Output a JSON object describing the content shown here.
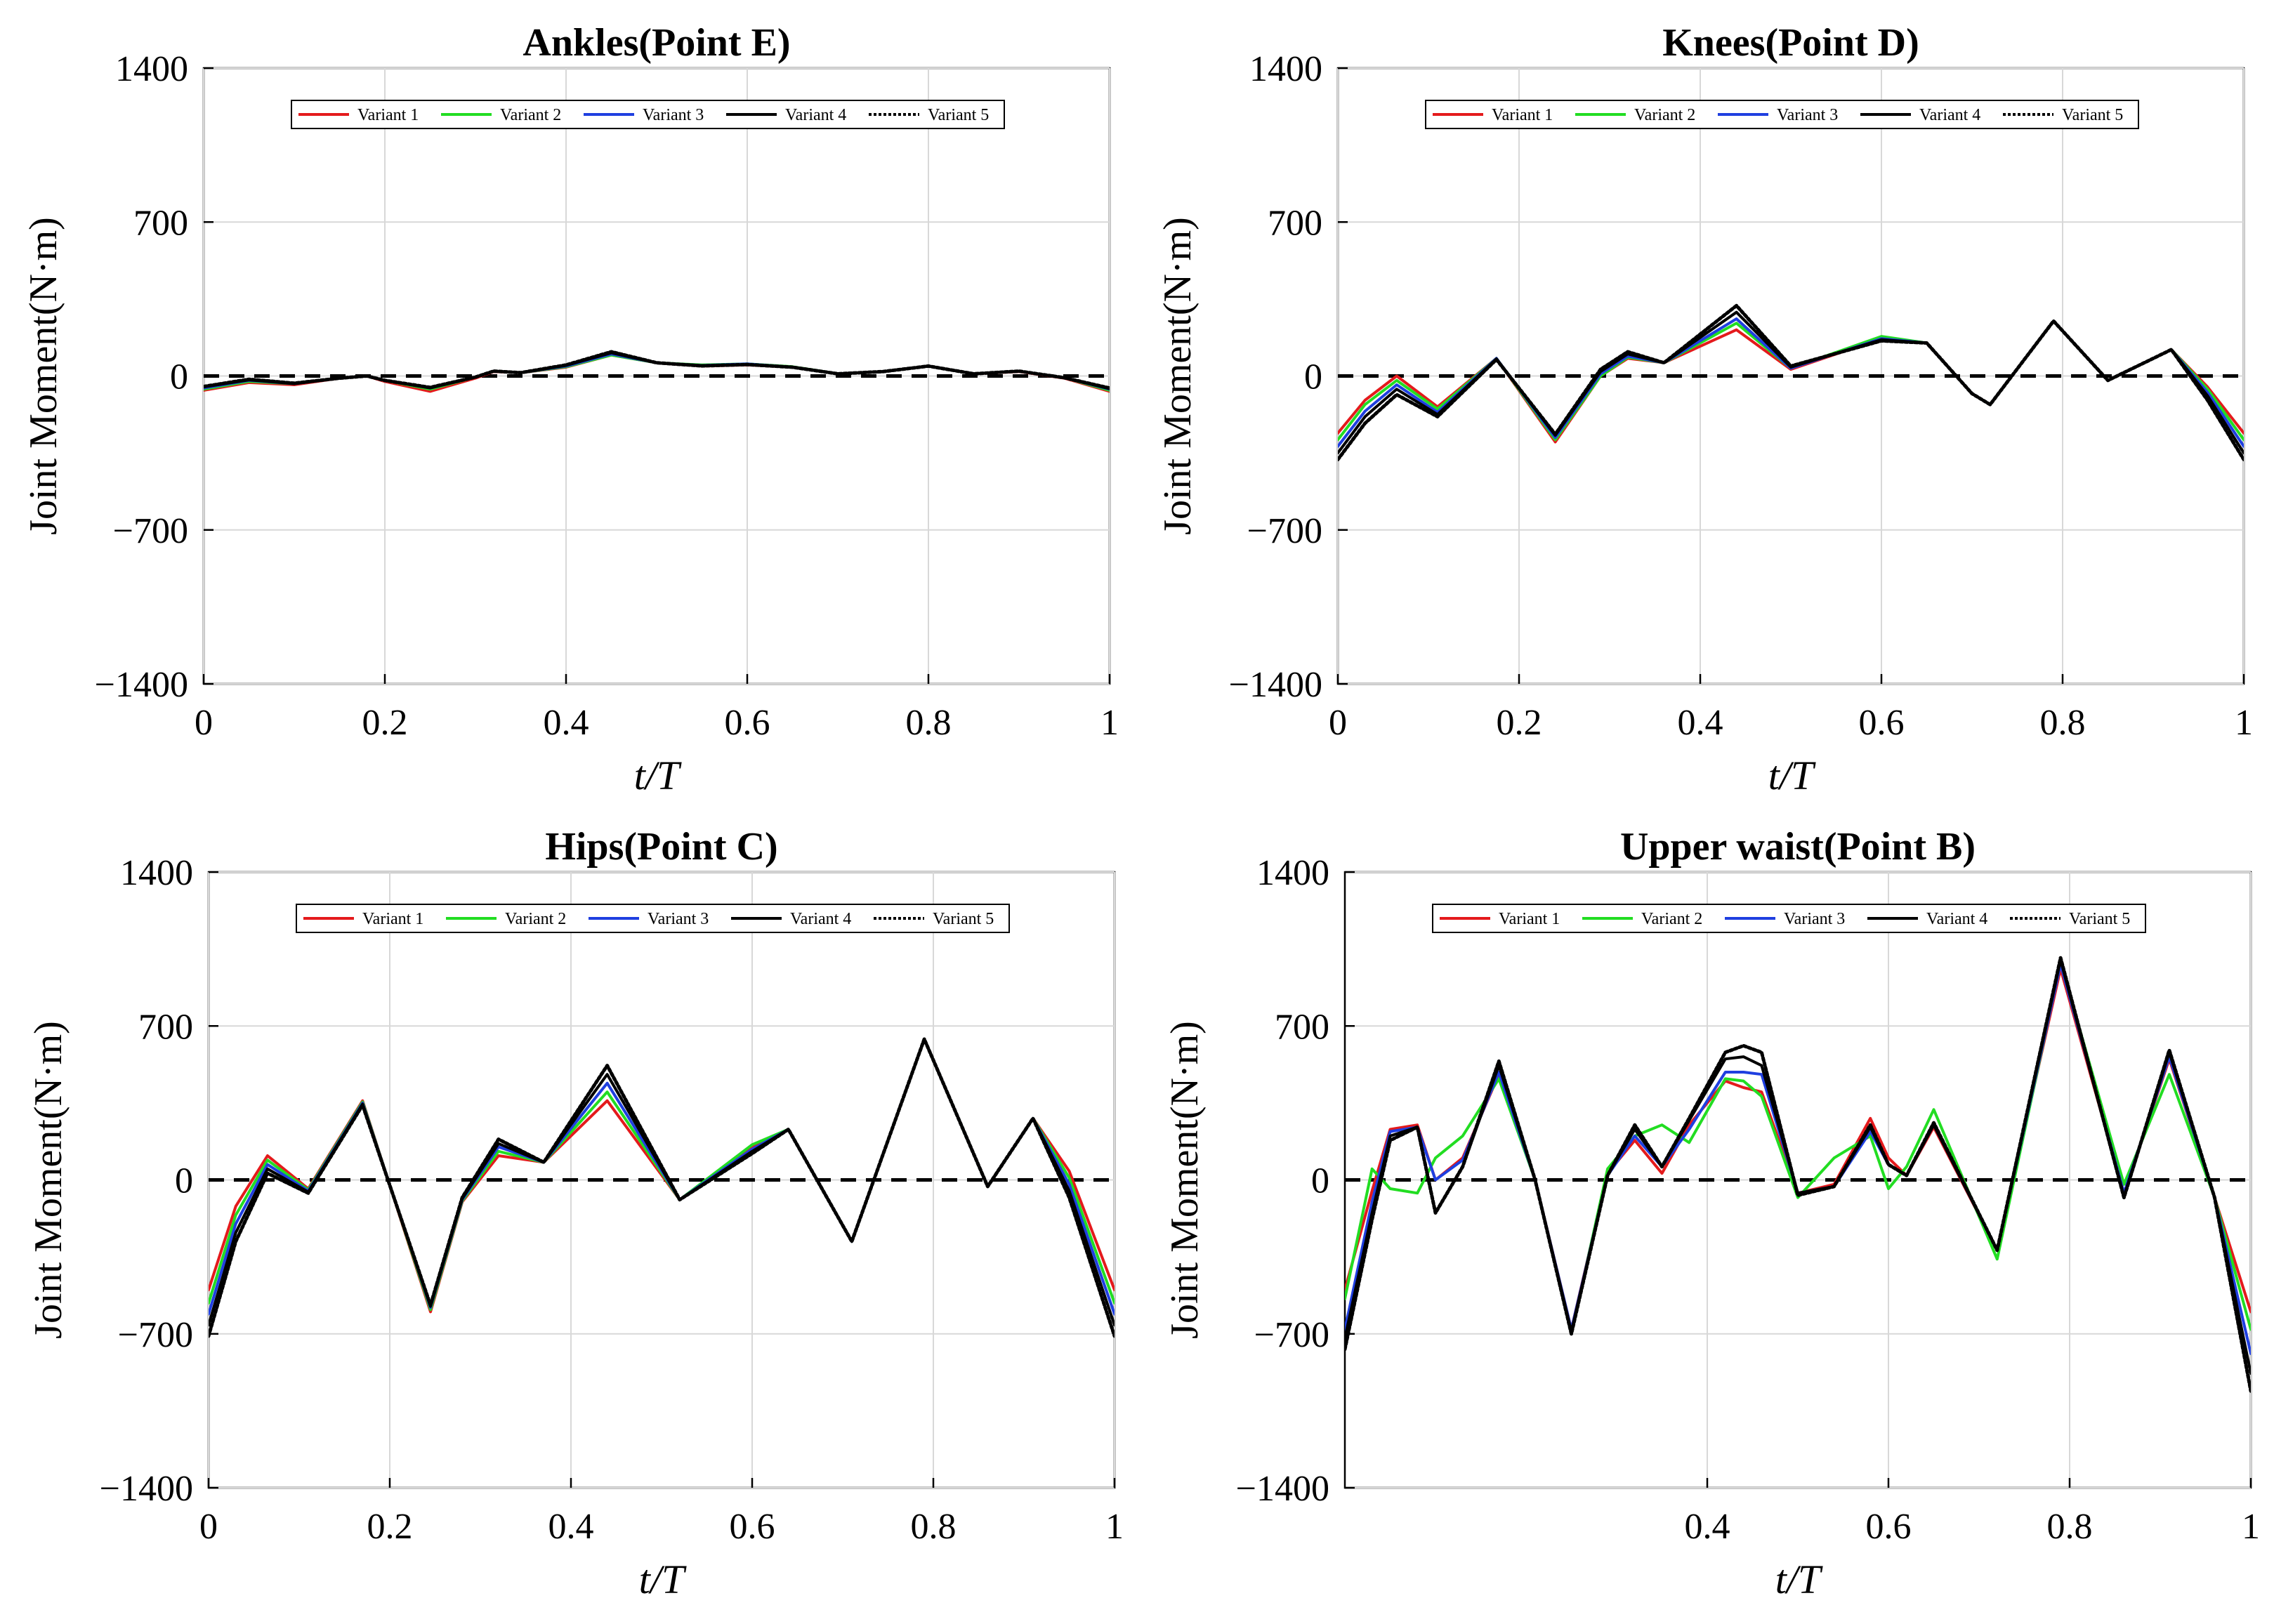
{
  "chart_data": [
    {
      "type": "line",
      "title": "Ankles(Point E)",
      "xlabel": "t/T",
      "ylabel": "Joint Moment(N·m)",
      "xlim": [
        0,
        1
      ],
      "ylim": [
        -1400,
        1400
      ],
      "xticks": [
        0,
        0.2,
        0.4,
        0.6,
        0.8,
        1
      ],
      "xtick_labels": [
        "0",
        "0.2",
        "0.4",
        "0.6",
        "0.8",
        "1"
      ],
      "yticks": [
        1400,
        700,
        0,
        -700,
        -1400
      ],
      "ytick_labels": [
        "1400",
        "700",
        "0",
        "−700",
        "−1400"
      ],
      "x": [
        0,
        0.05,
        0.1,
        0.15,
        0.18,
        0.2,
        0.25,
        0.3,
        0.32,
        0.35,
        0.4,
        0.45,
        0.5,
        0.55,
        0.6,
        0.65,
        0.7,
        0.75,
        0.8,
        0.85,
        0.9,
        0.95,
        1.0
      ],
      "series": [
        {
          "name": "Variant 1",
          "color": "#e41a1c",
          "dash": "",
          "values": [
            -65,
            -30,
            -40,
            -10,
            0,
            -25,
            -70,
            -10,
            20,
            15,
            40,
            95,
            60,
            45,
            50,
            40,
            10,
            20,
            45,
            10,
            20,
            -10,
            -70
          ]
        },
        {
          "name": "Variant 2",
          "color": "#22dd22",
          "dash": "",
          "values": [
            -60,
            -25,
            -35,
            -10,
            0,
            -20,
            -60,
            -5,
            22,
            15,
            42,
            95,
            60,
            50,
            55,
            42,
            10,
            20,
            45,
            10,
            22,
            -8,
            -65
          ]
        },
        {
          "name": "Variant 3",
          "color": "#1f3fe0",
          "dash": "",
          "values": [
            -55,
            -20,
            -35,
            -10,
            0,
            -20,
            -55,
            -5,
            22,
            15,
            45,
            100,
            60,
            48,
            55,
            40,
            10,
            20,
            45,
            10,
            22,
            -8,
            -60
          ]
        },
        {
          "name": "Variant 4",
          "color": "#000000",
          "dash": "",
          "values": [
            -50,
            -18,
            -35,
            -10,
            0,
            -20,
            -55,
            -5,
            22,
            15,
            48,
            105,
            60,
            47,
            52,
            40,
            10,
            20,
            45,
            10,
            22,
            -8,
            -58
          ]
        },
        {
          "name": "Variant 5",
          "color": "#000000",
          "dash": "4 3",
          "values": [
            -48,
            -15,
            -33,
            -10,
            0,
            -20,
            -52,
            -5,
            22,
            15,
            50,
            110,
            60,
            46,
            52,
            40,
            10,
            20,
            45,
            10,
            22,
            -8,
            -55
          ]
        }
      ]
    },
    {
      "type": "line",
      "title": "Knees(Point D)",
      "xlabel": "t/T",
      "ylabel": "Joint Moment(N·m)",
      "xlim": [
        0,
        1
      ],
      "ylim": [
        -1400,
        1400
      ],
      "xticks": [
        0,
        0.2,
        0.4,
        0.6,
        0.8,
        1
      ],
      "xtick_labels": [
        "0",
        "0.2",
        "0.4",
        "0.6",
        "0.8",
        "1"
      ],
      "yticks": [
        1400,
        700,
        0,
        -700,
        -1400
      ],
      "ytick_labels": [
        "1400",
        "700",
        "0",
        "−700",
        "−1400"
      ],
      "x": [
        0,
        0.03,
        0.065,
        0.11,
        0.175,
        0.24,
        0.29,
        0.32,
        0.36,
        0.44,
        0.5,
        0.6,
        0.65,
        0.7,
        0.72,
        0.79,
        0.85,
        0.92,
        0.96,
        1.0
      ],
      "series": [
        {
          "name": "Variant 1",
          "color": "#e41a1c",
          "dash": "",
          "values": [
            -260,
            -110,
            0,
            -140,
            80,
            -300,
            0,
            80,
            60,
            210,
            30,
            170,
            150,
            -80,
            -130,
            250,
            -20,
            120,
            -50,
            -260
          ]
        },
        {
          "name": "Variant 2",
          "color": "#22dd22",
          "dash": "",
          "values": [
            -290,
            -130,
            -20,
            -150,
            80,
            -290,
            0,
            85,
            60,
            240,
            35,
            180,
            150,
            -80,
            -130,
            250,
            -20,
            120,
            -60,
            -290
          ]
        },
        {
          "name": "Variant 3",
          "color": "#1f3fe0",
          "dash": "",
          "values": [
            -320,
            -160,
            -40,
            -165,
            80,
            -280,
            10,
            90,
            60,
            260,
            35,
            170,
            150,
            -80,
            -130,
            250,
            -20,
            120,
            -75,
            -320
          ]
        },
        {
          "name": "Variant 4",
          "color": "#000000",
          "dash": "",
          "values": [
            -350,
            -185,
            -60,
            -175,
            78,
            -270,
            20,
            100,
            60,
            290,
            40,
            165,
            150,
            -80,
            -130,
            250,
            -20,
            120,
            -90,
            -350
          ]
        },
        {
          "name": "Variant 5",
          "color": "#000000",
          "dash": "4 3",
          "values": [
            -380,
            -215,
            -85,
            -185,
            75,
            -265,
            30,
            110,
            60,
            320,
            45,
            160,
            150,
            -80,
            -130,
            250,
            -20,
            120,
            -110,
            -380
          ]
        }
      ]
    },
    {
      "type": "line",
      "title": "Hips(Point C)",
      "xlabel": "t/T",
      "ylabel": "Joint Moment(N·m)",
      "xlim": [
        0,
        1
      ],
      "ylim": [
        -1400,
        1400
      ],
      "xticks": [
        0,
        0.2,
        0.4,
        0.6,
        0.8,
        1
      ],
      "xtick_labels": [
        "0",
        "0.2",
        "0.4",
        "0.6",
        "0.8",
        "1"
      ],
      "yticks": [
        1400,
        700,
        0,
        -700,
        -1400
      ],
      "ytick_labels": [
        "1400",
        "700",
        "0",
        "−700",
        "−1400"
      ],
      "x": [
        0,
        0.03,
        0.065,
        0.11,
        0.17,
        0.245,
        0.28,
        0.32,
        0.37,
        0.44,
        0.52,
        0.6,
        0.64,
        0.71,
        0.79,
        0.86,
        0.91,
        0.95,
        1.0
      ],
      "series": [
        {
          "name": "Variant 1",
          "color": "#e41a1c",
          "dash": "",
          "values": [
            -500,
            -120,
            110,
            -40,
            360,
            -600,
            -100,
            110,
            80,
            360,
            -90,
            150,
            230,
            -280,
            640,
            -30,
            280,
            40,
            -500
          ]
        },
        {
          "name": "Variant 2",
          "color": "#22dd22",
          "dash": "",
          "values": [
            -560,
            -160,
            90,
            -45,
            355,
            -590,
            -95,
            130,
            80,
            400,
            -90,
            160,
            230,
            -280,
            640,
            -30,
            280,
            10,
            -560
          ]
        },
        {
          "name": "Variant 3",
          "color": "#1f3fe0",
          "dash": "",
          "values": [
            -610,
            -200,
            70,
            -50,
            350,
            -580,
            -90,
            150,
            80,
            440,
            -90,
            140,
            230,
            -280,
            640,
            -30,
            280,
            -20,
            -610
          ]
        },
        {
          "name": "Variant 4",
          "color": "#000000",
          "dash": "",
          "values": [
            -660,
            -240,
            50,
            -55,
            345,
            -575,
            -85,
            165,
            80,
            480,
            -90,
            130,
            230,
            -280,
            640,
            -30,
            280,
            -50,
            -660
          ]
        },
        {
          "name": "Variant 5",
          "color": "#000000",
          "dash": "4 3",
          "values": [
            -710,
            -280,
            30,
            -60,
            340,
            -570,
            -80,
            185,
            80,
            520,
            -90,
            120,
            230,
            -280,
            640,
            -30,
            280,
            -80,
            -710
          ]
        }
      ]
    },
    {
      "type": "line",
      "title": "Upper waist(Point B)",
      "xlabel": "t/T",
      "ylabel": "Joint Moment(N·m)",
      "xlim": [
        0,
        1
      ],
      "ylim": [
        -1400,
        1400
      ],
      "xticks": [
        0.4,
        0.6,
        0.8,
        1
      ],
      "xtick_labels": [
        "0.4",
        "0.6",
        "0.8",
        "1"
      ],
      "yticks": [
        1400,
        700,
        0,
        -700,
        -1400
      ],
      "ytick_labels": [
        "1400",
        "700",
        "0",
        "−700",
        "−1400"
      ],
      "x": [
        0,
        0.03,
        0.05,
        0.08,
        0.1,
        0.13,
        0.17,
        0.21,
        0.25,
        0.29,
        0.32,
        0.35,
        0.38,
        0.42,
        0.44,
        0.46,
        0.5,
        0.54,
        0.58,
        0.6,
        0.62,
        0.65,
        0.72,
        0.79,
        0.86,
        0.91,
        0.96,
        1.0
      ],
      "series": [
        {
          "name": "Variant 1",
          "color": "#e41a1c",
          "dash": "",
          "values": [
            -500,
            -50,
            230,
            250,
            0,
            100,
            480,
            0,
            -680,
            30,
            180,
            30,
            250,
            450,
            420,
            400,
            -60,
            -20,
            280,
            100,
            20,
            240,
            -320,
            960,
            -60,
            550,
            -80,
            -600
          ]
        },
        {
          "name": "Variant 2",
          "color": "#22dd22",
          "dash": "",
          "values": [
            -540,
            50,
            -40,
            -60,
            100,
            200,
            460,
            0,
            -700,
            50,
            200,
            250,
            170,
            460,
            450,
            380,
            -80,
            100,
            200,
            -40,
            60,
            320,
            -360,
            990,
            -20,
            480,
            -80,
            -680
          ]
        },
        {
          "name": "Variant 3",
          "color": "#1f3fe0",
          "dash": "",
          "values": [
            -680,
            -100,
            220,
            240,
            0,
            90,
            490,
            0,
            -680,
            20,
            200,
            60,
            230,
            490,
            490,
            480,
            -60,
            -30,
            220,
            70,
            20,
            250,
            -320,
            980,
            -60,
            560,
            -80,
            -790
          ]
        },
        {
          "name": "Variant 4",
          "color": "#000000",
          "dash": "",
          "values": [
            -720,
            -150,
            200,
            240,
            -150,
            60,
            520,
            0,
            -690,
            20,
            230,
            60,
            270,
            550,
            560,
            520,
            -60,
            -30,
            240,
            70,
            20,
            250,
            -320,
            1000,
            -80,
            580,
            -80,
            -880
          ]
        },
        {
          "name": "Variant 5",
          "color": "#000000",
          "dash": "4 3",
          "values": [
            -770,
            -180,
            180,
            240,
            -150,
            60,
            540,
            0,
            -700,
            20,
            250,
            60,
            280,
            580,
            610,
            580,
            -70,
            -30,
            250,
            70,
            20,
            260,
            -320,
            1010,
            -80,
            590,
            -80,
            -960
          ]
        }
      ]
    }
  ]
}
